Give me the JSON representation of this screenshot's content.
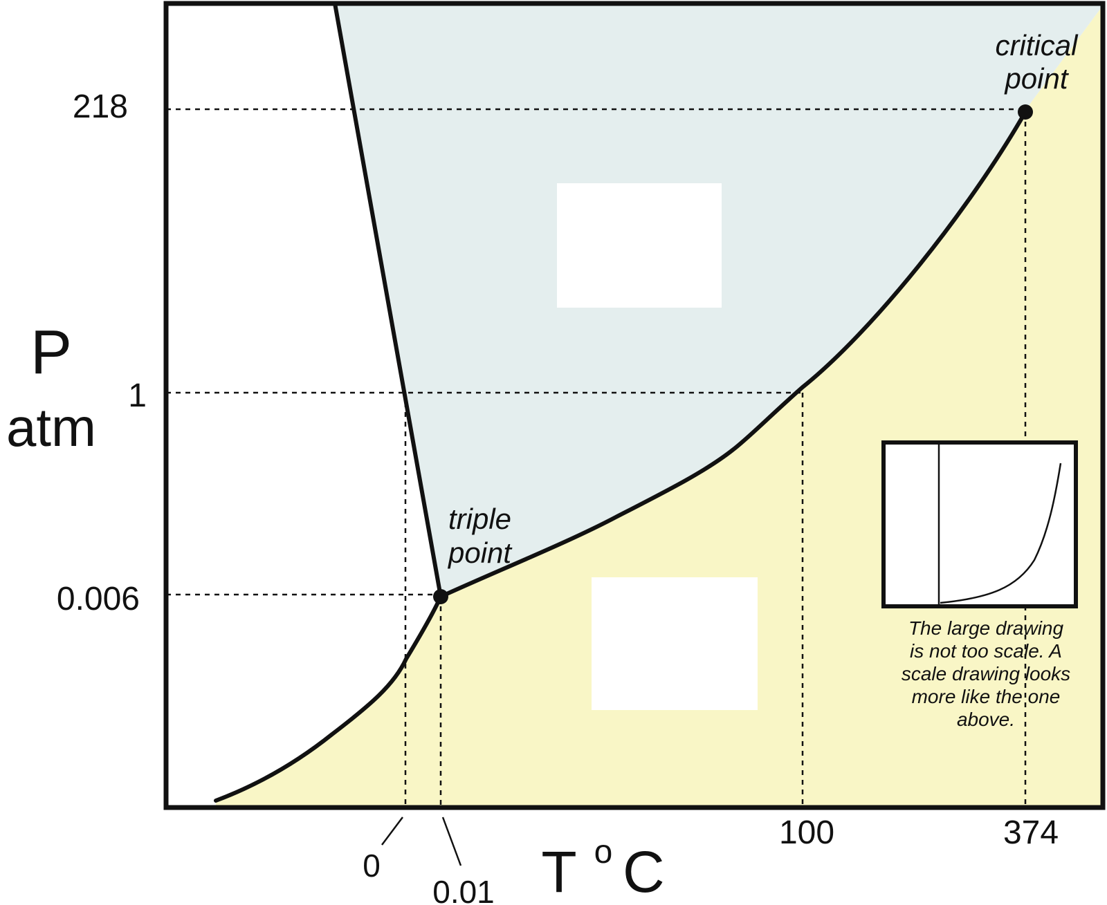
{
  "chart_data": {
    "type": "line",
    "title": "",
    "xlabel": "T",
    "xlabel_unit_sup": "o",
    "xlabel_unit": "C",
    "ylabel": "P",
    "ylabel_unit": "atm",
    "x_ticks": [
      "0",
      "0.01",
      "100",
      "374"
    ],
    "y_ticks": [
      "218",
      "1",
      "0.006"
    ],
    "scale": "schematic (not to scale)",
    "grid": false,
    "legend": "none",
    "points": [
      {
        "name": "triple point",
        "line1": "triple",
        "line2": "point",
        "T": 0.01,
        "P": 0.006
      },
      {
        "name": "critical point",
        "line1": "critical",
        "line2": "point",
        "T": 374,
        "P": 218
      }
    ],
    "reference_points": [
      {
        "T": 0,
        "P": 1
      },
      {
        "T": 100,
        "P": 1
      }
    ],
    "curves": [
      {
        "kind": "solid-liquid boundary",
        "from": "top edge",
        "to": "triple point"
      },
      {
        "kind": "liquid-vapor boundary",
        "from": "triple point",
        "to": "critical point"
      },
      {
        "kind": "solid-vapor boundary",
        "from": "lower left",
        "to": "triple point"
      }
    ],
    "regions": [
      {
        "kind": "liquid region",
        "color": "#e4eeee"
      },
      {
        "kind": "vapor region",
        "color": "#f9f6c6"
      }
    ],
    "inset_note": [
      "The large drawing",
      "is not too scale.  A",
      "scale drawing looks",
      "more like the one",
      "above."
    ]
  },
  "colors": {
    "liquid": "#e4eeee",
    "vapor": "#f9f6c6",
    "line": "#111111",
    "background": "#ffffff"
  }
}
